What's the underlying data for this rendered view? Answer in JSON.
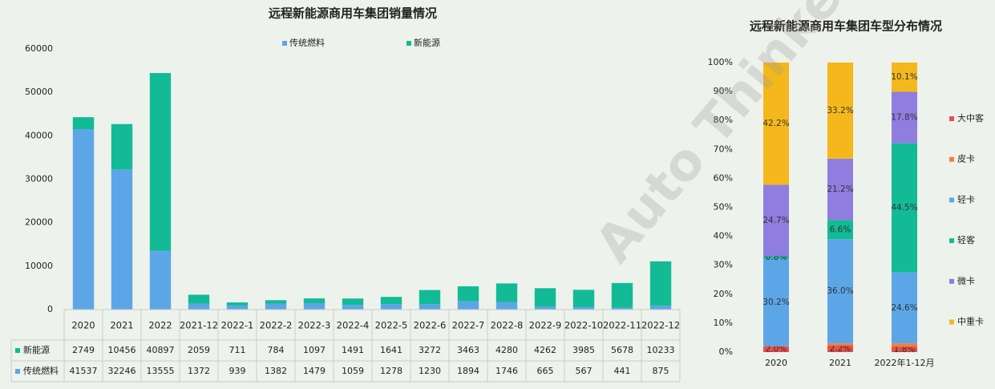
{
  "chart_data": [
    {
      "type": "bar",
      "stacked": true,
      "data_table": true,
      "legend": "top",
      "grid": false,
      "title": "远程新能源商用车集团销量情况",
      "categories": [
        "2020",
        "2021",
        "2022",
        "2021-12",
        "2022-1",
        "2022-2",
        "2022-3",
        "2022-4",
        "2022-5",
        "2022-6",
        "2022-7",
        "2022-8",
        "2022-9",
        "2022-10",
        "2022-11",
        "2022-12"
      ],
      "series": [
        {
          "name": "传统燃料",
          "color": "#5ca6e8",
          "values": [
            41537,
            32246,
            13555,
            1372,
            939,
            1382,
            1479,
            1059,
            1278,
            1230,
            1894,
            1746,
            665,
            567,
            441,
            875
          ]
        },
        {
          "name": "新能源",
          "color": "#12bb96",
          "values": [
            2749,
            10456,
            40897,
            2059,
            711,
            784,
            1097,
            1491,
            1641,
            3272,
            3463,
            4280,
            4262,
            3985,
            5678,
            10233
          ]
        }
      ],
      "ylim": [
        0,
        60000
      ],
      "yticks": [
        0,
        10000,
        20000,
        30000,
        40000,
        50000,
        60000
      ]
    },
    {
      "type": "bar",
      "stacked": true,
      "data_table": false,
      "legend": "right",
      "grid": false,
      "title": "远程新能源商用车集团车型分布情况",
      "categories": [
        "2020",
        "2021",
        "2022年1-12月"
      ],
      "series": [
        {
          "name": "大中客",
          "color": "#e8504a",
          "values": [
            2.0,
            2.2,
            1.8
          ],
          "value_labels": [
            "2.0%",
            "2.2%",
            "1.8%"
          ]
        },
        {
          "name": "皮卡",
          "color": "#f07f3c",
          "values": [
            0.1,
            0.8,
            1.2
          ]
        },
        {
          "name": "轻卡",
          "color": "#5ca6e8",
          "values": [
            30.2,
            36.0,
            24.6
          ],
          "value_labels": [
            "30.2%",
            "36.0%",
            "24.6%"
          ]
        },
        {
          "name": "轻客",
          "color": "#12bb96",
          "values": [
            0.8,
            6.6,
            44.5
          ],
          "value_labels": [
            "0.8%",
            "6.6%",
            "44.5%"
          ]
        },
        {
          "name": "微卡",
          "color": "#8f7de0",
          "values": [
            24.7,
            21.2,
            17.8
          ],
          "value_labels": [
            "24.7%",
            "21.2%",
            "17.8%"
          ]
        },
        {
          "name": "中重卡",
          "color": "#f5b81c",
          "values": [
            42.2,
            33.2,
            10.1
          ],
          "value_labels": [
            "42.2%",
            "33.2%",
            "10.1%"
          ]
        }
      ],
      "ylim": [
        0,
        100
      ],
      "yticks": [
        {
          "value": 0,
          "label": "0%"
        },
        {
          "value": 10,
          "label": "10%"
        },
        {
          "value": 20,
          "label": "20%"
        },
        {
          "value": 30,
          "label": "30%"
        },
        {
          "value": 40,
          "label": "40%"
        },
        {
          "value": 50,
          "label": "50%"
        },
        {
          "value": 60,
          "label": "60%"
        },
        {
          "value": 70,
          "label": "70%"
        },
        {
          "value": 80,
          "label": "80%"
        },
        {
          "value": 90,
          "label": "90%"
        },
        {
          "value": 100,
          "label": "100%"
        }
      ]
    }
  ],
  "watermark": "Auto Thinker 汽车智库"
}
